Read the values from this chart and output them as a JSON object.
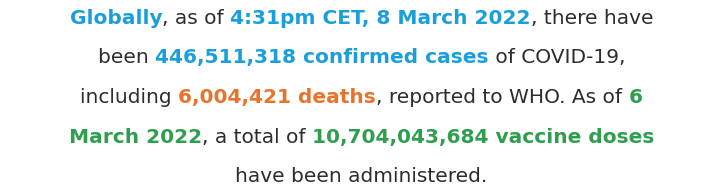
{
  "background_color": "#ffffff",
  "lines": [
    {
      "segments": [
        {
          "text": "Globally",
          "color": "#1a9fda",
          "bold": true
        },
        {
          "text": ", as of ",
          "color": "#2d2d2d",
          "bold": false
        },
        {
          "text": "4:31pm CET, 8 March 2022",
          "color": "#1a9fda",
          "bold": true
        },
        {
          "text": ", there have",
          "color": "#2d2d2d",
          "bold": false
        }
      ]
    },
    {
      "segments": [
        {
          "text": "been ",
          "color": "#2d2d2d",
          "bold": false
        },
        {
          "text": "446,511,318 confirmed cases",
          "color": "#1a9fda",
          "bold": true
        },
        {
          "text": " of COVID-19,",
          "color": "#2d2d2d",
          "bold": false
        }
      ]
    },
    {
      "segments": [
        {
          "text": "including ",
          "color": "#2d2d2d",
          "bold": false
        },
        {
          "text": "6,004,421 deaths",
          "color": "#e8732a",
          "bold": true
        },
        {
          "text": ", reported to WHO. As of ",
          "color": "#2d2d2d",
          "bold": false
        },
        {
          "text": "6",
          "color": "#2e9e4f",
          "bold": true
        }
      ]
    },
    {
      "segments": [
        {
          "text": "March 2022",
          "color": "#2e9e4f",
          "bold": true
        },
        {
          "text": ", a total of ",
          "color": "#2d2d2d",
          "bold": false
        },
        {
          "text": "10,704,043,684 vaccine doses",
          "color": "#2e9e4f",
          "bold": true
        }
      ]
    },
    {
      "segments": [
        {
          "text": "have been administered.",
          "color": "#2d2d2d",
          "bold": false
        }
      ]
    }
  ],
  "font_size": 14.5,
  "font_family": "DejaVu Sans",
  "fig_width": 7.23,
  "fig_height": 1.95,
  "dpi": 100
}
